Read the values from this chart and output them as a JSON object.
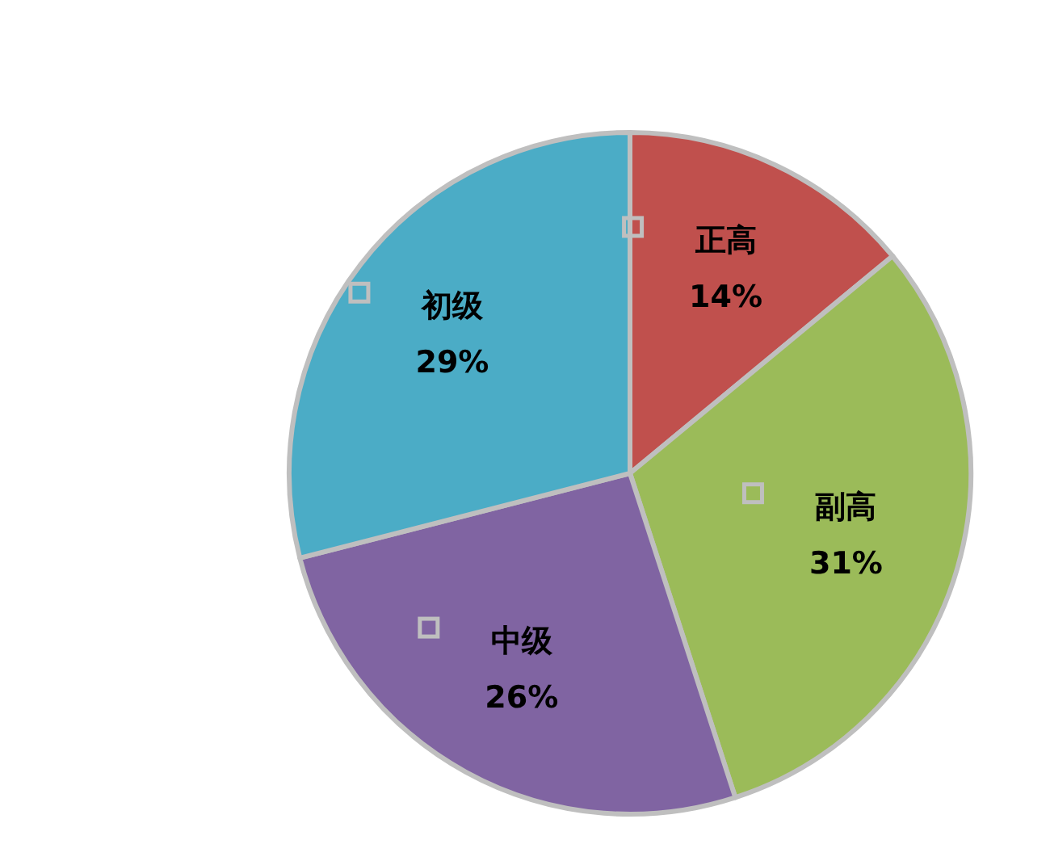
{
  "chart_data": {
    "type": "pie",
    "categories": [
      "正高",
      "副高",
      "中级",
      "初级"
    ],
    "values": [
      14,
      31,
      26,
      29
    ],
    "value_labels": [
      "14%",
      "31%",
      "26%",
      "29%"
    ],
    "colors": [
      "#c0504d",
      "#9bbb59",
      "#8064a2",
      "#4bacc6"
    ],
    "legend": "center"
  }
}
